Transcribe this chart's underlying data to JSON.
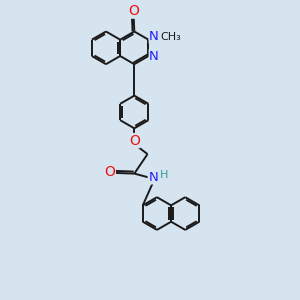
{
  "bg": "#d6e4f0",
  "bond_color": "#1a1a1a",
  "bond_lw": 1.4,
  "atom_colors": {
    "N": "#2020ff",
    "O": "#ee1111",
    "H": "#339999",
    "C": "#1a1a1a"
  },
  "fs": 8.5,
  "R": 0.52,
  "figsize": [
    3.0,
    3.0
  ],
  "dpi": 100,
  "xlim": [
    0,
    8.5
  ],
  "ylim": [
    0,
    9.5
  ]
}
